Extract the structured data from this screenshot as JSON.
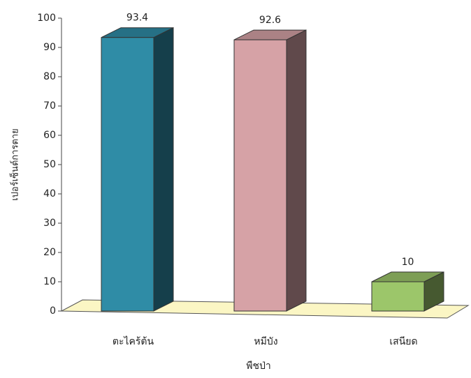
{
  "chart_data": {
    "type": "bar3d",
    "y_label": "เปอร์เซ็นต์การตาย",
    "x_label": "พืชป่า",
    "categories": [
      "ตะไคร้ต้น",
      "หมีบัง",
      "เสนียด"
    ],
    "values": [
      93.4,
      92.6,
      10
    ],
    "colors": [
      "#2f8ca6",
      "#d6a2a6",
      "#9cc66a"
    ],
    "ylim": [
      0,
      100
    ],
    "yticks": [
      0,
      10,
      20,
      30,
      40,
      50,
      60,
      70,
      80,
      90,
      100
    ]
  }
}
